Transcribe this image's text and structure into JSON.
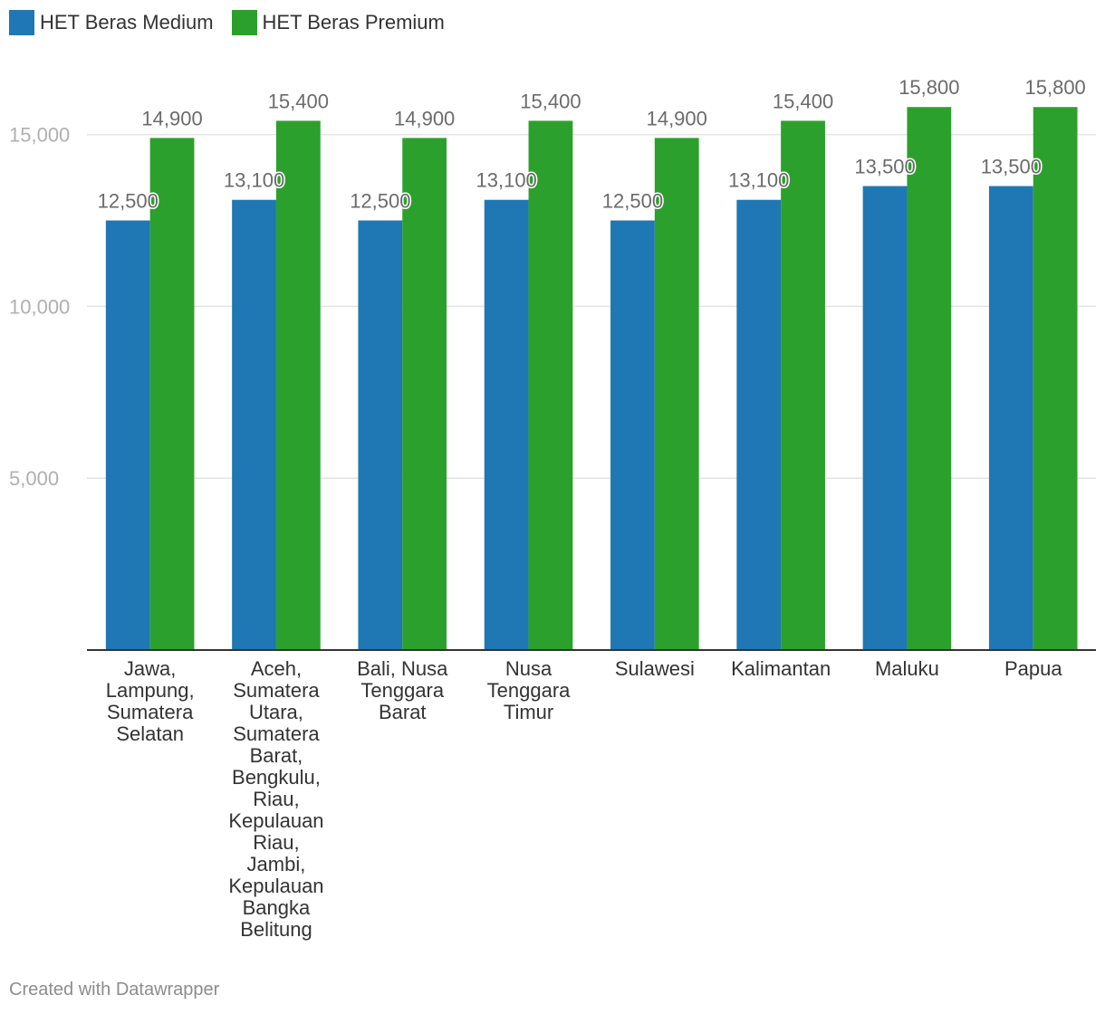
{
  "legend": {
    "items": [
      {
        "label": "HET Beras Medium",
        "color": "#1f77b4"
      },
      {
        "label": "HET Beras Premium",
        "color": "#2ca02c"
      }
    ]
  },
  "footer": {
    "credit": "Created with Datawrapper"
  },
  "chart_data": {
    "type": "bar",
    "title": "",
    "xlabel": "",
    "ylabel": "",
    "ylim": [
      0,
      15800
    ],
    "yticks": [
      5000,
      10000,
      15000
    ],
    "ytick_labels": [
      "5,000",
      "10,000",
      "15,000"
    ],
    "grid": true,
    "legend_position": "top-left",
    "categories": [
      [
        "Jawa,",
        "Lampung,",
        "Sumatera",
        "Selatan"
      ],
      [
        "Aceh,",
        "Sumatera",
        "Utara,",
        "Sumatera",
        "Barat,",
        "Bengkulu,",
        "Riau,",
        "Kepulauan",
        "Riau,",
        "Jambi,",
        "Kepulauan",
        "Bangka",
        "Belitung"
      ],
      [
        "Bali, Nusa",
        "Tenggara",
        "Barat"
      ],
      [
        "Nusa",
        "Tenggara",
        "Timur"
      ],
      [
        "Sulawesi"
      ],
      [
        "Kalimantan"
      ],
      [
        "Maluku"
      ],
      [
        "Papua"
      ]
    ],
    "series": [
      {
        "name": "HET Beras Medium",
        "color": "#1f77b4",
        "values": [
          12500,
          13100,
          12500,
          13100,
          12500,
          13100,
          13500,
          13500
        ],
        "labels": [
          "12,500",
          "13,100",
          "12,500",
          "13,100",
          "12,500",
          "13,100",
          "13,500",
          "13,500"
        ]
      },
      {
        "name": "HET Beras Premium",
        "color": "#2ca02c",
        "values": [
          14900,
          15400,
          14900,
          15400,
          14900,
          15400,
          15800,
          15800
        ],
        "labels": [
          "14,900",
          "15,400",
          "14,900",
          "15,400",
          "14,900",
          "15,400",
          "15,800",
          "15,800"
        ]
      }
    ]
  }
}
